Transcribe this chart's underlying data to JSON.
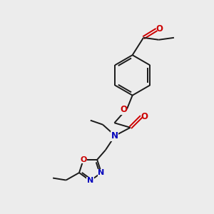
{
  "bg_color": "#ececec",
  "bond_color": "#1a1a1a",
  "o_color": "#cc0000",
  "n_color": "#0000bb",
  "lw": 1.4,
  "fs": 8.5,
  "xlim": [
    0,
    10
  ],
  "ylim": [
    0,
    10
  ]
}
